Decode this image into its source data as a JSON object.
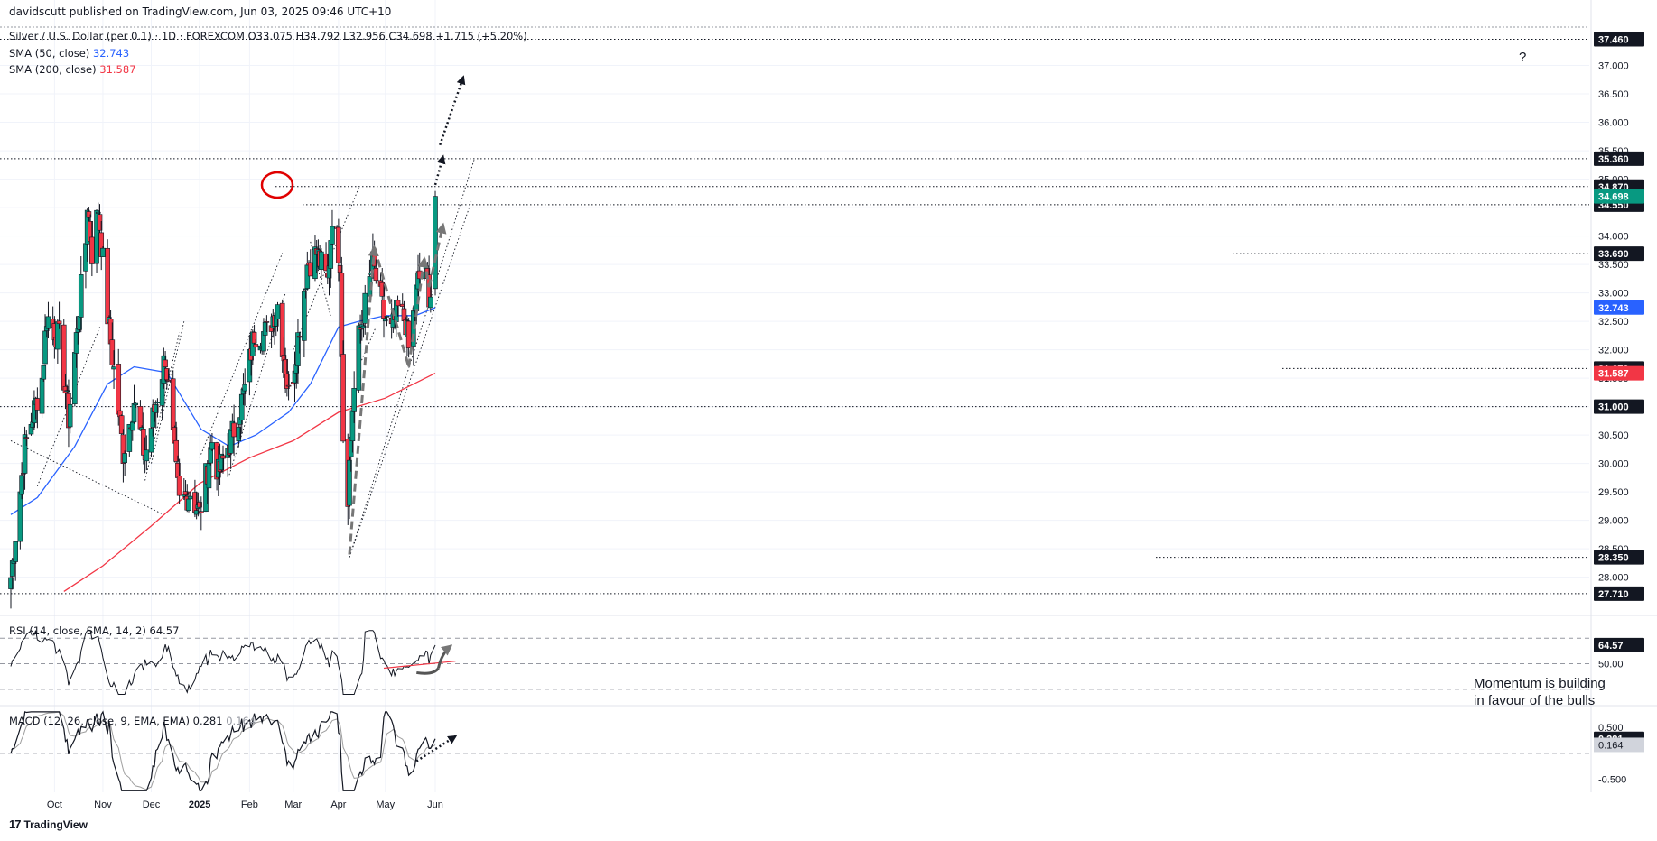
{
  "publish_line": "davidscutt published on TradingView.com, Jun 03, 2025 09:46 UTC+10",
  "legend": {
    "main": "Silver / U.S. Dollar (per 0.1) · 1D · FOREXCOM  O33.075  H34.792  L32.956  C34.698  +1.715 (+5.20%)",
    "sma50_label": "SMA (50, close)",
    "sma50_value": "32.743",
    "sma200_label": "SMA (200, close)",
    "sma200_value": "31.587",
    "rsi_label": "RSI (14, close, SMA, 14, 2)",
    "rsi_value": "64.57",
    "macd_label": "MACD (12, 26, close, 9, EMA, EMA)",
    "macd_value": "0.281",
    "macd_signal": "0.164"
  },
  "annotation_line1": "Momentum is building",
  "annotation_line2": "in favour of the bulls",
  "question_mark": "?",
  "logo_text": "TradingView",
  "colors": {
    "up": "#089981",
    "down": "#f23645",
    "sma50": "#2962ff",
    "sma200": "#f23645",
    "rsi": "#131722",
    "macd": "#131722",
    "signal": "#9e9e9e",
    "highlight": "#089981",
    "label_bg": "#131722"
  },
  "chart_data": {
    "type": "candlestick",
    "symbol": "Silver / U.S. Dollar (per 0.1)",
    "interval": "1D",
    "x_ticks": [
      "Oct",
      "Nov",
      "Dec",
      "2025",
      "Feb",
      "Mar",
      "Apr",
      "May",
      "Jun"
    ],
    "y_ticks": [
      28.0,
      28.5,
      29.0,
      29.5,
      30.0,
      30.5,
      31.0,
      31.5,
      32.0,
      32.5,
      33.0,
      33.5,
      34.0,
      34.5,
      35.0,
      35.5,
      36.0,
      36.5,
      37.0
    ],
    "y_range": [
      27.55,
      37.58
    ],
    "levels": [
      37.46,
      35.36,
      34.87,
      34.55,
      33.69,
      31.67,
      31.0,
      28.35,
      27.71
    ],
    "level_labels": [
      "37.460",
      "35.360",
      "34.870",
      "34.550",
      "33.690",
      "31.670",
      "31.000",
      "28.350",
      "27.710"
    ],
    "price_labels": [
      {
        "text": "34.698",
        "value": 34.698,
        "kind": "price"
      },
      {
        "text": "32.743",
        "value": 32.743,
        "kind": "sma50"
      },
      {
        "text": "31.587",
        "value": 31.587,
        "kind": "sma200"
      }
    ],
    "last_ohlc": {
      "open": 33.075,
      "high": 34.792,
      "low": 32.956,
      "close": 34.698,
      "change": 1.715,
      "change_pct": 5.2
    },
    "rsi": {
      "ticks": [
        50.0
      ],
      "last": 64.57,
      "last_label": "64.57",
      "y_range": [
        20,
        85
      ]
    },
    "macd": {
      "ticks": [
        0.5,
        -0.5
      ],
      "tick_labels": [
        "0.500",
        "-0.500"
      ],
      "last": 0.281,
      "signal": 0.164,
      "last_label": "0.281",
      "signal_label": "0.164",
      "y_range": [
        -0.75,
        0.85
      ]
    },
    "anchors": [
      {
        "date": "2024-09-03",
        "price": 28.0
      },
      {
        "date": "2024-09-12",
        "price": 30.3
      },
      {
        "date": "2024-09-23",
        "price": 31.5
      },
      {
        "date": "2024-09-26",
        "price": 32.6
      },
      {
        "date": "2024-10-04",
        "price": 32.2
      },
      {
        "date": "2024-10-10",
        "price": 30.8
      },
      {
        "date": "2024-10-21",
        "price": 33.9
      },
      {
        "date": "2024-10-22",
        "price": 34.6
      },
      {
        "date": "2024-10-25",
        "price": 33.7
      },
      {
        "date": "2024-10-29",
        "price": 34.5
      },
      {
        "date": "2024-11-04",
        "price": 32.6
      },
      {
        "date": "2024-11-14",
        "price": 30.2
      },
      {
        "date": "2024-11-21",
        "price": 31.1
      },
      {
        "date": "2024-11-28",
        "price": 30.1
      },
      {
        "date": "2024-12-11",
        "price": 31.9
      },
      {
        "date": "2024-12-18",
        "price": 29.8
      },
      {
        "date": "2024-12-20",
        "price": 29.3
      },
      {
        "date": "2024-12-27",
        "price": 29.5
      },
      {
        "date": "2025-01-02",
        "price": 29.1
      },
      {
        "date": "2025-01-10",
        "price": 30.4
      },
      {
        "date": "2025-01-14",
        "price": 29.8
      },
      {
        "date": "2025-01-24",
        "price": 30.6
      },
      {
        "date": "2025-01-31",
        "price": 31.3
      },
      {
        "date": "2025-02-06",
        "price": 32.3
      },
      {
        "date": "2025-02-14",
        "price": 32.3
      },
      {
        "date": "2025-02-21",
        "price": 32.8
      },
      {
        "date": "2025-02-28",
        "price": 31.2
      },
      {
        "date": "2025-03-03",
        "price": 31.6
      },
      {
        "date": "2025-03-12",
        "price": 33.5
      },
      {
        "date": "2025-03-18",
        "price": 33.7
      },
      {
        "date": "2025-03-25",
        "price": 33.2
      },
      {
        "date": "2025-03-28",
        "price": 34.4
      },
      {
        "date": "2025-04-02",
        "price": 33.6
      },
      {
        "date": "2025-04-04",
        "price": 30.5
      },
      {
        "date": "2025-04-07",
        "price": 29.5
      },
      {
        "date": "2025-04-10",
        "price": 31.0
      },
      {
        "date": "2025-04-14",
        "price": 32.2
      },
      {
        "date": "2025-04-21",
        "price": 33.2
      },
      {
        "date": "2025-04-23",
        "price": 33.5
      },
      {
        "date": "2025-04-30",
        "price": 32.6
      },
      {
        "date": "2025-05-05",
        "price": 32.3
      },
      {
        "date": "2025-05-09",
        "price": 32.7
      },
      {
        "date": "2025-05-14",
        "price": 32.5
      },
      {
        "date": "2025-05-16",
        "price": 32.0
      },
      {
        "date": "2025-05-22",
        "price": 33.2
      },
      {
        "date": "2025-05-26",
        "price": 33.4
      },
      {
        "date": "2025-05-29",
        "price": 33.0
      },
      {
        "date": "2025-05-30",
        "price": 33.0
      },
      {
        "date": "2025-06-02",
        "price": 34.7
      }
    ],
    "sma50_path": [
      {
        "date": "2024-09-03",
        "price": 29.1
      },
      {
        "date": "2024-09-20",
        "price": 29.4
      },
      {
        "date": "2024-10-14",
        "price": 30.3
      },
      {
        "date": "2024-11-04",
        "price": 31.4
      },
      {
        "date": "2024-11-21",
        "price": 31.7
      },
      {
        "date": "2024-12-12",
        "price": 31.6
      },
      {
        "date": "2025-01-03",
        "price": 30.6
      },
      {
        "date": "2025-01-21",
        "price": 30.3
      },
      {
        "date": "2025-02-07",
        "price": 30.5
      },
      {
        "date": "2025-02-28",
        "price": 30.9
      },
      {
        "date": "2025-03-14",
        "price": 31.4
      },
      {
        "date": "2025-04-01",
        "price": 32.4
      },
      {
        "date": "2025-04-14",
        "price": 32.5
      },
      {
        "date": "2025-05-01",
        "price": 32.6
      },
      {
        "date": "2025-05-20",
        "price": 32.6
      },
      {
        "date": "2025-06-02",
        "price": 32.74
      }
    ],
    "sma200_path": [
      {
        "date": "2024-10-07",
        "price": 27.75
      },
      {
        "date": "2024-11-01",
        "price": 28.2
      },
      {
        "date": "2024-12-02",
        "price": 28.9
      },
      {
        "date": "2025-01-02",
        "price": 29.65
      },
      {
        "date": "2025-02-03",
        "price": 30.1
      },
      {
        "date": "2025-03-03",
        "price": 30.4
      },
      {
        "date": "2025-04-01",
        "price": 30.9
      },
      {
        "date": "2025-05-01",
        "price": 31.15
      },
      {
        "date": "2025-06-02",
        "price": 31.587
      }
    ]
  }
}
